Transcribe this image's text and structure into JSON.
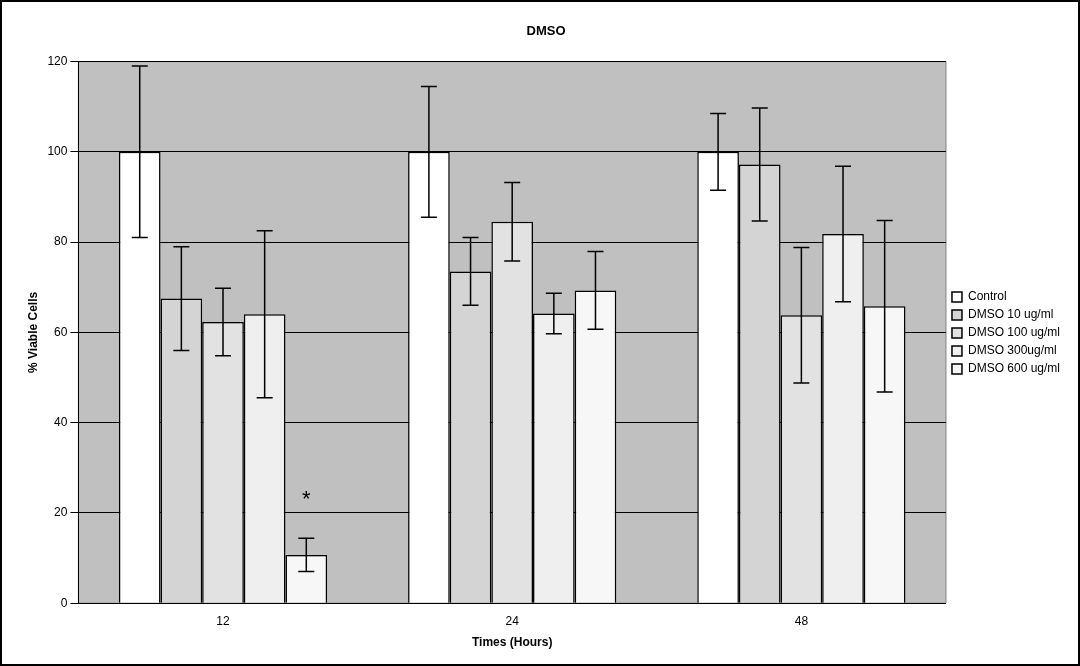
{
  "chart_data": {
    "type": "bar",
    "title": "DMSO",
    "xlabel": "Times (Hours)",
    "ylabel": "% Viable Cells",
    "categories": [
      "12",
      "24",
      "48"
    ],
    "series": [
      {
        "name": "Control",
        "color": "#ffffff",
        "values": [
          100,
          100,
          100
        ],
        "errors": [
          19,
          14.5,
          8.5
        ]
      },
      {
        "name": "DMSO 10 ug/ml",
        "color": "#d4d4d4",
        "values": [
          67.5,
          73.5,
          97.2
        ],
        "errors": [
          11.5,
          7.5,
          12.5
        ]
      },
      {
        "name": "DMSO 100 ug/ml",
        "color": "#e2e2e2",
        "values": [
          62.3,
          84.5,
          63.8
        ],
        "errors": [
          7.5,
          8.7,
          15
        ]
      },
      {
        "name": "DMSO 300ug/ml",
        "color": "#efefef",
        "values": [
          64,
          64.2,
          81.8
        ],
        "errors": [
          18.5,
          4.5,
          15
        ]
      },
      {
        "name": "DMSO 600 ug/ml",
        "color": "#f7f7f7",
        "values": [
          10.7,
          69.3,
          65.8
        ],
        "errors": [
          3.7,
          8.6,
          19
        ]
      }
    ],
    "ylim": [
      0,
      120
    ],
    "yticks": [
      0,
      20,
      40,
      60,
      80,
      100,
      120
    ],
    "grid": "y",
    "legend": "right",
    "annotations": [
      "*"
    ]
  }
}
